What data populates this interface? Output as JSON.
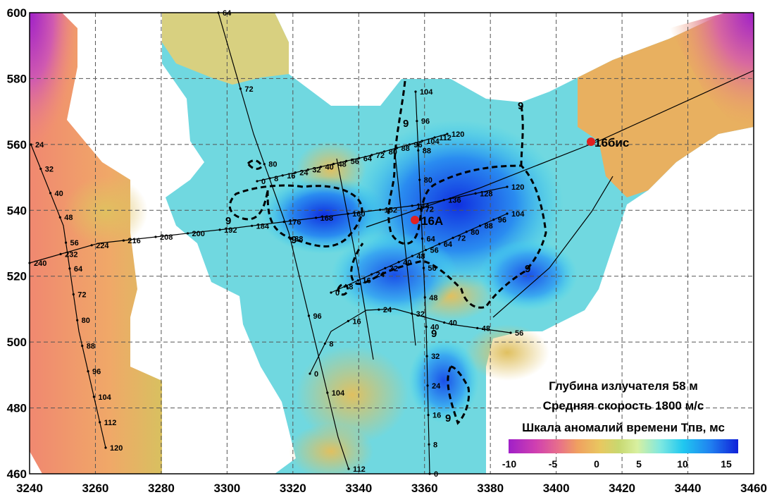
{
  "map": {
    "x_ticks": [
      "3240",
      "3260",
      "3280",
      "3300",
      "3320",
      "3340",
      "3360",
      "3380",
      "3400",
      "3420",
      "3440",
      "3460"
    ],
    "y_ticks": [
      "600",
      "580",
      "560",
      "540",
      "520",
      "500",
      "480",
      "460"
    ],
    "contour_label": "9",
    "wells": [
      {
        "name": "16А",
        "x": 3357,
        "y": 537
      },
      {
        "name": "16бис",
        "x": 3411,
        "y": 561
      }
    ]
  },
  "info": {
    "depth": "Глубина излучателя 58 м",
    "velocity": "Средняя скорость 1800 м/с",
    "scale_title": "Шкала аномалий времени Тпв, мс"
  },
  "scale": {
    "ticks": [
      "-10",
      "-5",
      "0",
      "5",
      "10",
      "15"
    ],
    "colors": [
      "#a020c8",
      "#f0a060",
      "#e8c860",
      "#d8f0a0",
      "#20c8f0",
      "#1020d8"
    ]
  },
  "profiles": [
    {
      "name": "p1",
      "labels": [
        "24",
        "32",
        "40",
        "48",
        "56",
        "64",
        "72",
        "80",
        "88",
        "96",
        "104",
        "112",
        "120"
      ]
    },
    {
      "name": "p2",
      "labels": [
        "240",
        "232",
        "224",
        "216",
        "208",
        "200",
        "192",
        "184",
        "176",
        "168",
        "160",
        "152",
        "144",
        "136",
        "128",
        "120"
      ]
    },
    {
      "name": "p3",
      "labels": [
        "64",
        "72",
        "80",
        "88",
        "96",
        "104",
        "112"
      ]
    },
    {
      "name": "p4",
      "labels": [
        "0",
        "8",
        "16",
        "24",
        "32",
        "40",
        "48",
        "56"
      ]
    },
    {
      "name": "p5",
      "labels": [
        "104",
        "96",
        "88",
        "80",
        "72",
        "64",
        "56",
        "48",
        "40",
        "32",
        "24",
        "16",
        "8",
        "0"
      ]
    },
    {
      "name": "p6",
      "labels": [
        "0",
        "8",
        "16",
        "24",
        "32",
        "40",
        "48",
        "56",
        "64",
        "72",
        "80",
        "88",
        "96",
        "104"
      ]
    },
    {
      "name": "p7",
      "labels": [
        "0",
        "8",
        "16",
        "24",
        "32",
        "40",
        "48",
        "56",
        "64",
        "72",
        "80",
        "88",
        "96",
        "104",
        "112",
        "120"
      ]
    }
  ]
}
